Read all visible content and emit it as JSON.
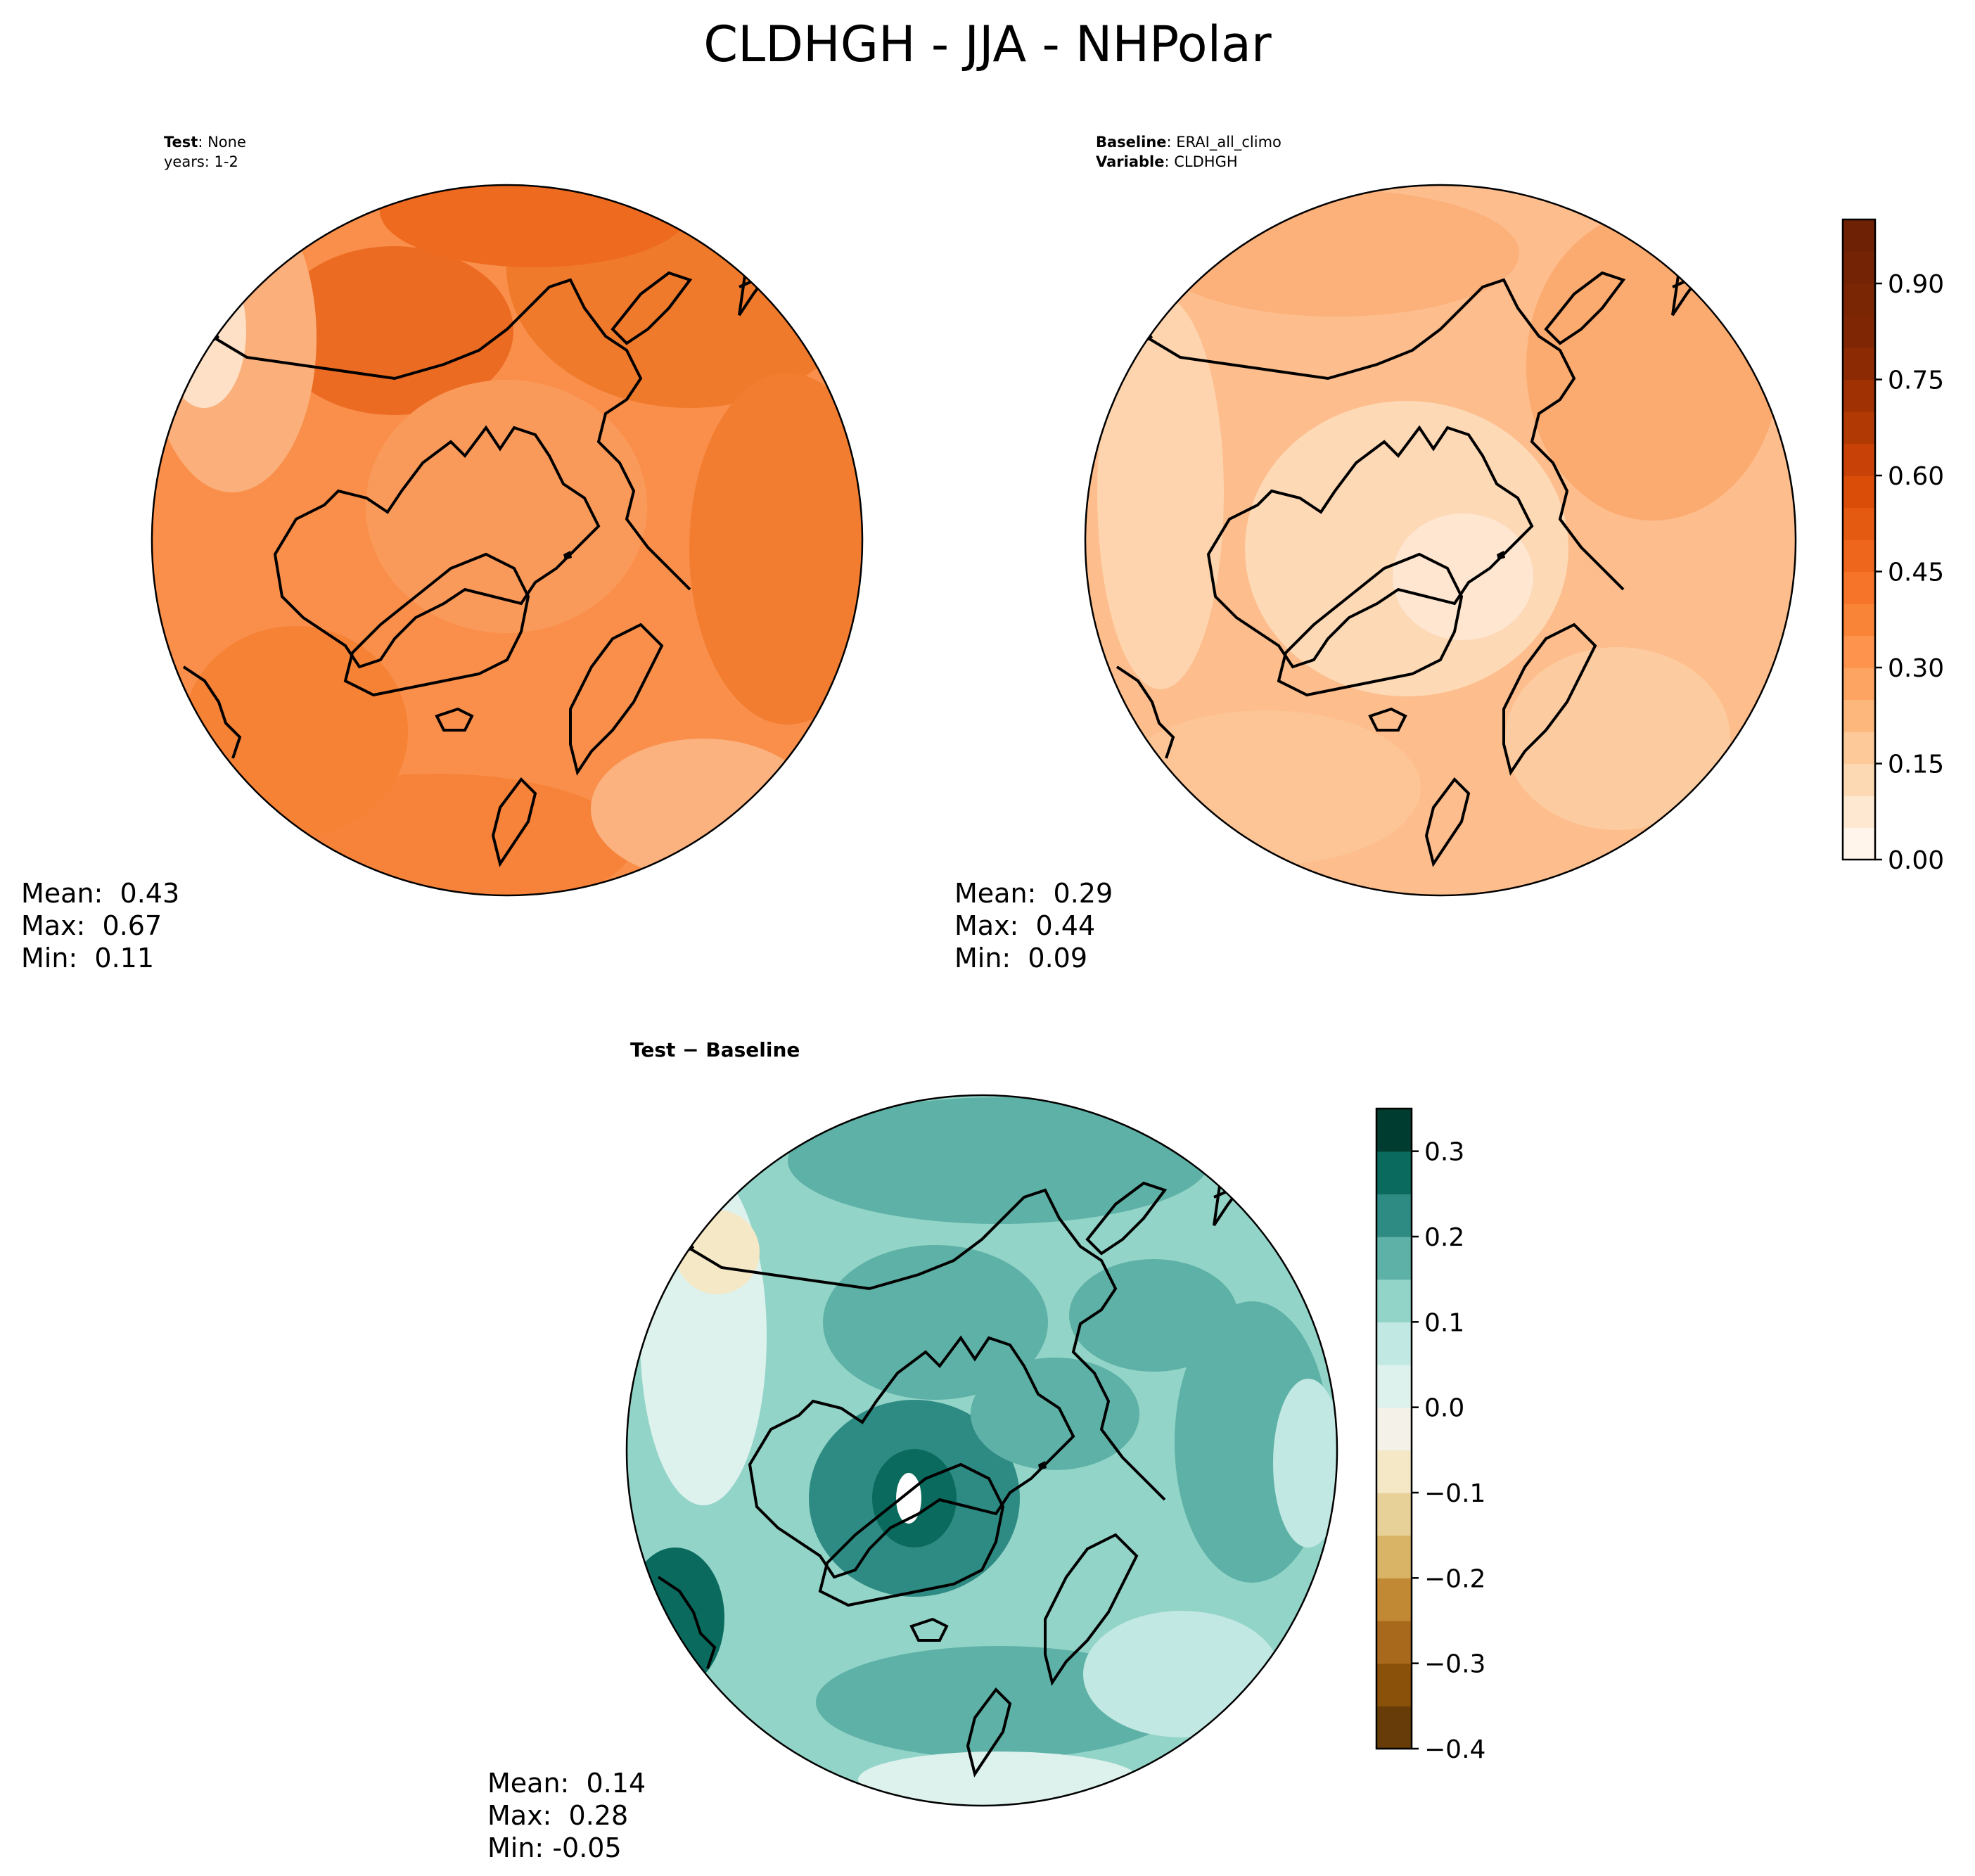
{
  "title": "CLDHGH - JJA - NHPolar",
  "test_panel": {
    "header_key": "Test",
    "header_sep": ": ",
    "header_value": "None",
    "header_line2": "years: 1-2",
    "stats": {
      "mean_label": "Mean:",
      "mean": "0.43",
      "max_label": "Max:",
      "max": "0.67",
      "min_label": "Min:",
      "min": "0.11"
    }
  },
  "baseline_panel": {
    "header_key": "Baseline",
    "header_sep": ": ",
    "header_value": "ERAI_all_climo",
    "header_key2": "Variable",
    "header_value2": "CLDHGH",
    "stats": {
      "mean_label": "Mean:",
      "mean": "0.29",
      "max_label": "Max:",
      "max": "0.44",
      "min_label": "Min:",
      "min": "0.09"
    }
  },
  "diff_panel": {
    "title_left": "Test",
    "title_op": " − ",
    "title_right": "Baseline",
    "stats": {
      "mean_label": "Mean:",
      "mean": "0.14",
      "max_label": "Max:",
      "max": "0.28",
      "min_label": "Min:",
      "min": "-0.05"
    }
  },
  "colorbar_main": {
    "min": 0.0,
    "max": 1.0,
    "levels": 20,
    "ticks": [
      "0.00",
      "0.15",
      "0.30",
      "0.45",
      "0.60",
      "0.75",
      "0.90"
    ],
    "tick_values": [
      0.0,
      0.15,
      0.3,
      0.45,
      0.6,
      0.75,
      0.9
    ],
    "colors": [
      "#fff5eb",
      "#fee8d1",
      "#fdd9b3",
      "#fdc998",
      "#fdb77d",
      "#fda462",
      "#fd934d",
      "#f98336",
      "#f5742a",
      "#ee651c",
      "#e55a11",
      "#da4d09",
      "#c84207",
      "#b13903",
      "#9f3103",
      "#8c2b03",
      "#7f2704",
      "#7a2504",
      "#742304",
      "#6e2104"
    ]
  },
  "colorbar_diff": {
    "min": -0.4,
    "max": 0.35,
    "levels": 15,
    "ticks": [
      "0.3",
      "0.2",
      "0.1",
      "0.0",
      "−0.1",
      "−0.2",
      "−0.3",
      "−0.4"
    ],
    "tick_values": [
      0.3,
      0.2,
      0.1,
      0.0,
      -0.1,
      -0.2,
      -0.3,
      -0.4
    ],
    "colors": [
      "#673c08",
      "#8a510a",
      "#a8691d",
      "#c28935",
      "#d9b466",
      "#e8d198",
      "#f4e8c6",
      "#f3f1e8",
      "#ddf1ed",
      "#c1e8e2",
      "#93d4c8",
      "#5eb1a6",
      "#2e8b83",
      "#0b6a5e",
      "#003c30"
    ]
  },
  "chart_data": [
    {
      "type": "heatmap",
      "title": "Test: None",
      "subtitle": "years: 1-2",
      "projection": "north polar stereographic",
      "colormap": "Oranges",
      "range": [
        0.0,
        1.0
      ],
      "stats": {
        "mean": 0.43,
        "max": 0.67,
        "min": 0.11
      }
    },
    {
      "type": "heatmap",
      "title": "Baseline: ERAI_all_climo",
      "subtitle": "Variable: CLDHGH",
      "projection": "north polar stereographic",
      "colormap": "Oranges",
      "range": [
        0.0,
        1.0
      ],
      "stats": {
        "mean": 0.29,
        "max": 0.44,
        "min": 0.09
      }
    },
    {
      "type": "heatmap",
      "title": "Test − Baseline",
      "projection": "north polar stereographic",
      "colormap": "BrBG",
      "range": [
        -0.4,
        0.35
      ],
      "stats": {
        "mean": 0.14,
        "max": 0.28,
        "min": -0.05
      }
    }
  ]
}
